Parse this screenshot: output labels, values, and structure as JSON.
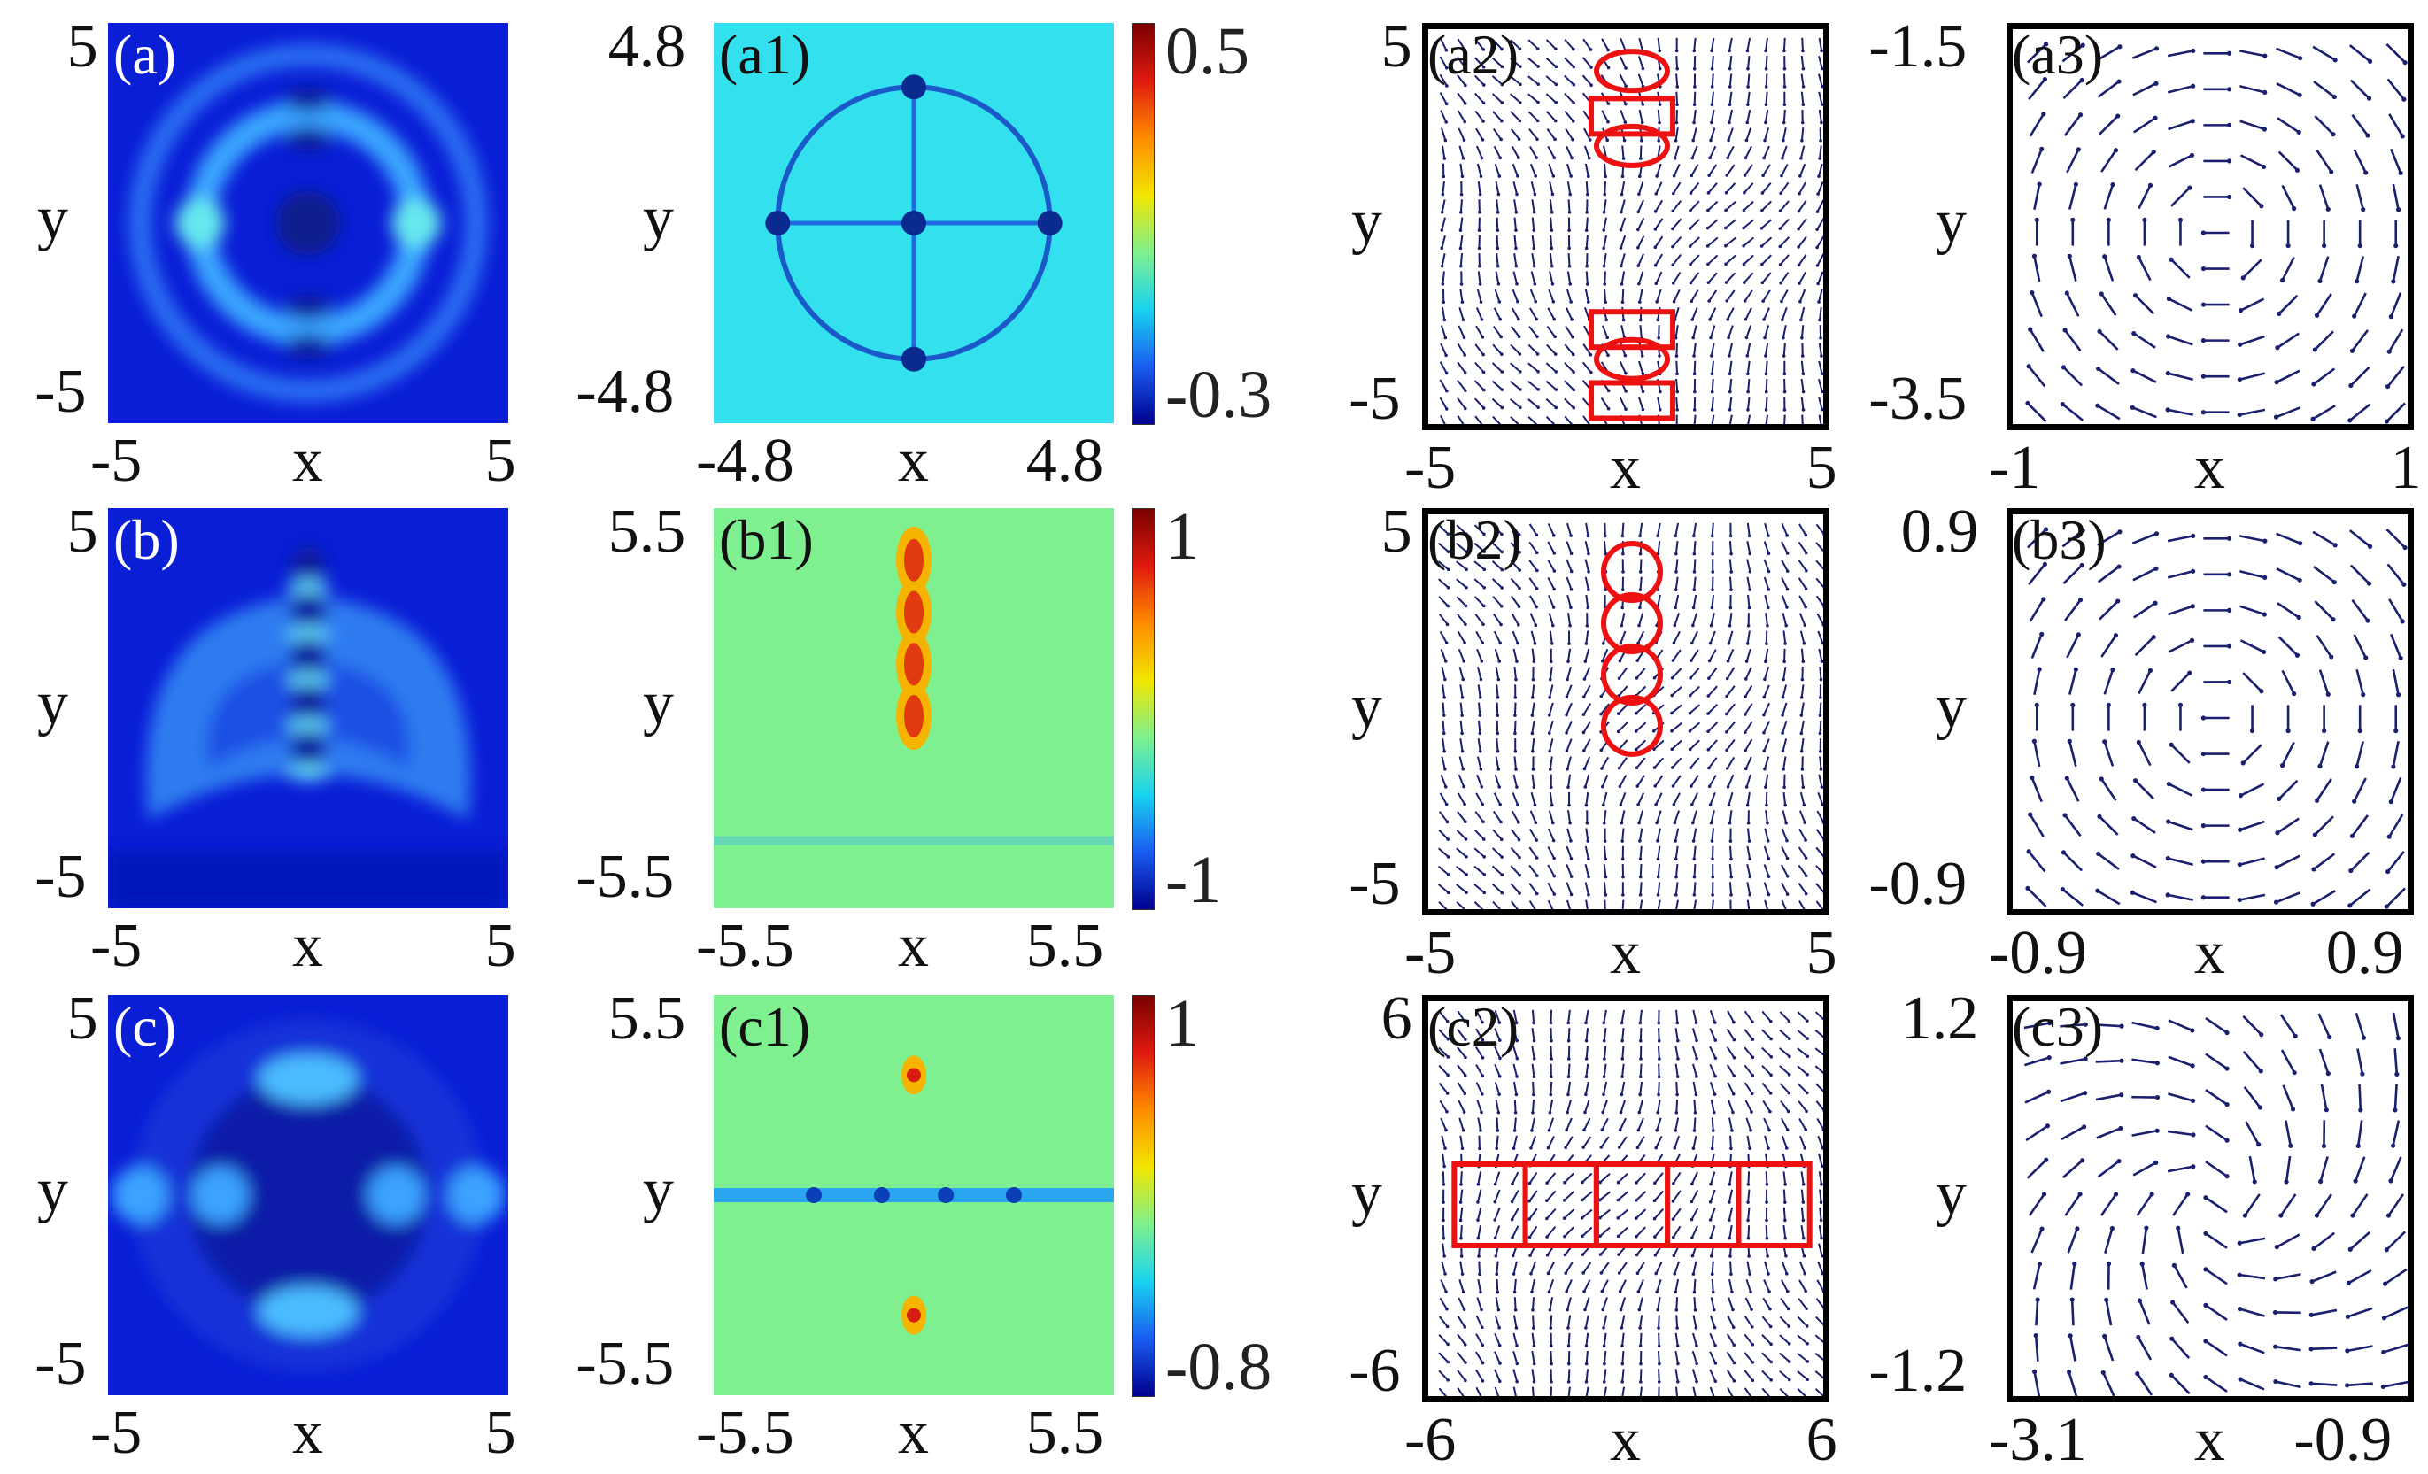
{
  "chart_data": [
    {
      "type": "heatmap",
      "panel": "(a)",
      "xlabel": "x",
      "ylabel": "y",
      "x_ticks": [
        "-5",
        "5"
      ],
      "y_ticks": [
        "5",
        "-5"
      ],
      "xlim": [
        -5,
        5
      ],
      "ylim": [
        -5,
        5
      ]
    },
    {
      "type": "heatmap",
      "panel": "(a1)",
      "xlabel": "x",
      "ylabel": "y",
      "x_ticks": [
        "-4.8",
        "4.8"
      ],
      "y_ticks": [
        "4.8",
        "-4.8"
      ],
      "xlim": [
        -4.8,
        4.8
      ],
      "ylim": [
        -4.8,
        4.8
      ],
      "colorbar": {
        "ticks": [
          "0.5",
          "-0.3"
        ],
        "range": [
          -0.3,
          0.5
        ]
      }
    },
    {
      "type": "vector-field",
      "panel": "(a2)",
      "xlabel": "x",
      "ylabel": "y",
      "x_ticks": [
        "-5",
        "5"
      ],
      "y_ticks": [
        "5",
        "-5"
      ],
      "xlim": [
        -5,
        5
      ],
      "ylim": [
        -5,
        5
      ]
    },
    {
      "type": "vector-field",
      "panel": "(a3)",
      "xlabel": "x",
      "ylabel": "y",
      "x_ticks": [
        "-1",
        "1"
      ],
      "y_ticks": [
        "-1.5",
        "-3.5"
      ],
      "xlim": [
        -1,
        1
      ],
      "ylim": [
        -3.5,
        -1.5
      ]
    },
    {
      "type": "heatmap",
      "panel": "(b)",
      "xlabel": "x",
      "ylabel": "y",
      "x_ticks": [
        "-5",
        "5"
      ],
      "y_ticks": [
        "5",
        "-5"
      ],
      "xlim": [
        -5,
        5
      ],
      "ylim": [
        -5,
        5
      ]
    },
    {
      "type": "heatmap",
      "panel": "(b1)",
      "xlabel": "x",
      "ylabel": "y",
      "x_ticks": [
        "-5.5",
        "5.5"
      ],
      "y_ticks": [
        "5.5",
        "-5.5"
      ],
      "xlim": [
        -5.5,
        5.5
      ],
      "ylim": [
        -5.5,
        5.5
      ],
      "colorbar": {
        "ticks": [
          "1",
          "-1"
        ],
        "range": [
          -1,
          1
        ]
      }
    },
    {
      "type": "vector-field",
      "panel": "(b2)",
      "xlabel": "x",
      "ylabel": "y",
      "x_ticks": [
        "-5",
        "5"
      ],
      "y_ticks": [
        "5",
        "-5"
      ],
      "xlim": [
        -5,
        5
      ],
      "ylim": [
        -5,
        5
      ]
    },
    {
      "type": "vector-field",
      "panel": "(b3)",
      "xlabel": "x",
      "ylabel": "y",
      "x_ticks": [
        "-0.9",
        "0.9"
      ],
      "y_ticks": [
        "0.9",
        "-0.9"
      ],
      "xlim": [
        -0.9,
        0.9
      ],
      "ylim": [
        -0.9,
        0.9
      ]
    },
    {
      "type": "heatmap",
      "panel": "(c)",
      "xlabel": "x",
      "ylabel": "y",
      "x_ticks": [
        "-5",
        "5"
      ],
      "y_ticks": [
        "5",
        "-5"
      ],
      "xlim": [
        -5,
        5
      ],
      "ylim": [
        -5,
        5
      ]
    },
    {
      "type": "heatmap",
      "panel": "(c1)",
      "xlabel": "x",
      "ylabel": "y",
      "x_ticks": [
        "-5.5",
        "5.5"
      ],
      "y_ticks": [
        "5.5",
        "-5.5"
      ],
      "xlim": [
        -5.5,
        5.5
      ],
      "ylim": [
        -5.5,
        5.5
      ],
      "colorbar": {
        "ticks": [
          "1",
          "-0.8"
        ],
        "range": [
          -0.8,
          1
        ]
      }
    },
    {
      "type": "vector-field",
      "panel": "(c2)",
      "xlabel": "x",
      "ylabel": "y",
      "x_ticks": [
        "-6",
        "6"
      ],
      "y_ticks": [
        "6",
        "-6"
      ],
      "xlim": [
        -6,
        6
      ],
      "ylim": [
        -6,
        6
      ]
    },
    {
      "type": "vector-field",
      "panel": "(c3)",
      "xlabel": "x",
      "ylabel": "y",
      "x_ticks": [
        "-3.1",
        "-0.9"
      ],
      "y_ticks": [
        "1.2",
        "-1.2"
      ],
      "xlim": [
        -3.1,
        -0.9
      ],
      "ylim": [
        -1.2,
        1.2
      ]
    }
  ],
  "colors": {
    "arrow": "#1a1f6e",
    "marker": "#ee1111",
    "density_bg": "#0a1ed6"
  }
}
